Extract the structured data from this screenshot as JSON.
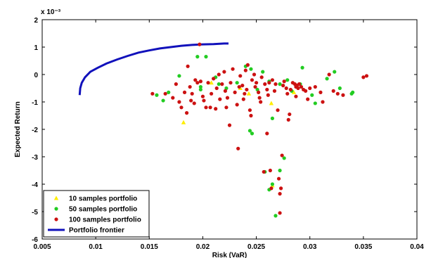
{
  "chart_data": {
    "type": "scatter",
    "xlabel": "Risk (VaR)",
    "ylabel": "Expected Return",
    "exponent_label": "x 10⁻³",
    "xlim": [
      0.005,
      0.04
    ],
    "ylim": [
      -6,
      2
    ],
    "x_ticks": [
      "0.005",
      "0.01",
      "0.015",
      "0.02",
      "0.025",
      "0.03",
      "0.035",
      "0.04"
    ],
    "y_ticks": [
      "2",
      "1",
      "0",
      "-1",
      "-2",
      "-3",
      "-4",
      "-5",
      "-6"
    ],
    "legend_position": "bottom-left",
    "grid": false,
    "series": [
      {
        "name": "10 samples portfolio",
        "marker": "triangle",
        "color": "#ffee00",
        "points": [
          [
            0.0182,
            -1.75
          ],
          [
            0.0264,
            -1.05
          ],
          [
            0.0265,
            -4.05
          ],
          [
            0.0208,
            -0.3
          ],
          [
            0.0235,
            -0.5
          ],
          [
            0.0285,
            -0.65
          ],
          [
            0.0243,
            -0.7
          ]
        ]
      },
      {
        "name": "50 samples portfolio",
        "marker": "circle",
        "color": "#22cc22",
        "points": [
          [
            0.0157,
            -0.75
          ],
          [
            0.0163,
            -0.95
          ],
          [
            0.0168,
            -0.65
          ],
          [
            0.0178,
            -0.05
          ],
          [
            0.0195,
            0.65
          ],
          [
            0.0203,
            0.65
          ],
          [
            0.0198,
            -0.45
          ],
          [
            0.0198,
            -0.55
          ],
          [
            0.0212,
            -0.1
          ],
          [
            0.0215,
            -0.35
          ],
          [
            0.0222,
            -0.5
          ],
          [
            0.0232,
            -0.3
          ],
          [
            0.024,
            0.3
          ],
          [
            0.0245,
            0.2
          ],
          [
            0.0244,
            -2.05
          ],
          [
            0.0246,
            -2.15
          ],
          [
            0.0251,
            -0.55
          ],
          [
            0.0256,
            0.1
          ],
          [
            0.0262,
            -0.25
          ],
          [
            0.0265,
            -1.6
          ],
          [
            0.0262,
            -4.2
          ],
          [
            0.0265,
            -4.0
          ],
          [
            0.0272,
            -0.35
          ],
          [
            0.0276,
            -3.05
          ],
          [
            0.0272,
            -3.5
          ],
          [
            0.0268,
            -5.15
          ],
          [
            0.0279,
            -0.2
          ],
          [
            0.0283,
            -0.6
          ],
          [
            0.0291,
            -0.35
          ],
          [
            0.0293,
            0.25
          ],
          [
            0.0302,
            -0.75
          ],
          [
            0.0305,
            -1.05
          ],
          [
            0.0316,
            -0.15
          ],
          [
            0.0323,
            0.1
          ],
          [
            0.0328,
            -0.5
          ],
          [
            0.034,
            -0.65
          ],
          [
            0.0339,
            -0.7
          ],
          [
            0.0258,
            -3.55
          ]
        ]
      },
      {
        "name": "100 samples portfolio",
        "marker": "circle",
        "color": "#cc1111",
        "points": [
          [
            0.0153,
            -0.7
          ],
          [
            0.0165,
            -0.7
          ],
          [
            0.0172,
            -0.85
          ],
          [
            0.0175,
            -0.35
          ],
          [
            0.0178,
            -1.0
          ],
          [
            0.018,
            -1.2
          ],
          [
            0.0183,
            -0.65
          ],
          [
            0.0185,
            -1.4
          ],
          [
            0.0186,
            0.3
          ],
          [
            0.0188,
            -0.45
          ],
          [
            0.019,
            -0.7
          ],
          [
            0.0192,
            -1.05
          ],
          [
            0.0193,
            -0.2
          ],
          [
            0.0195,
            -0.3
          ],
          [
            0.0197,
            1.1
          ],
          [
            0.0198,
            -0.25
          ],
          [
            0.02,
            -0.8
          ],
          [
            0.0201,
            -0.95
          ],
          [
            0.0203,
            -1.2
          ],
          [
            0.0205,
            -0.3
          ],
          [
            0.0207,
            -1.2
          ],
          [
            0.0208,
            -0.7
          ],
          [
            0.021,
            -0.15
          ],
          [
            0.0212,
            -1.25
          ],
          [
            0.0213,
            -0.5
          ],
          [
            0.0215,
            0.0
          ],
          [
            0.0216,
            -0.9
          ],
          [
            0.0218,
            -0.35
          ],
          [
            0.022,
            0.1
          ],
          [
            0.0221,
            -0.6
          ],
          [
            0.0222,
            -1.2
          ],
          [
            0.0223,
            -0.85
          ],
          [
            0.0225,
            -1.85
          ],
          [
            0.0226,
            -0.3
          ],
          [
            0.0228,
            0.2
          ],
          [
            0.023,
            -0.65
          ],
          [
            0.0232,
            -1.1
          ],
          [
            0.0233,
            -2.7
          ],
          [
            0.0235,
            -0.05
          ],
          [
            0.0237,
            -0.4
          ],
          [
            0.0238,
            -0.9
          ],
          [
            0.024,
            0.15
          ],
          [
            0.0241,
            -0.55
          ],
          [
            0.0242,
            0.35
          ],
          [
            0.0244,
            -1.3
          ],
          [
            0.0245,
            -1.5
          ],
          [
            0.0246,
            -0.2
          ],
          [
            0.0248,
            0.0
          ],
          [
            0.0249,
            -0.45
          ],
          [
            0.025,
            -0.3
          ],
          [
            0.0252,
            -0.65
          ],
          [
            0.0253,
            -0.85
          ],
          [
            0.0254,
            -1.0
          ],
          [
            0.0255,
            -0.1
          ],
          [
            0.0257,
            -3.55
          ],
          [
            0.0258,
            -0.35
          ],
          [
            0.026,
            -2.15
          ],
          [
            0.026,
            -0.55
          ],
          [
            0.0262,
            -0.3
          ],
          [
            0.0263,
            -3.5
          ],
          [
            0.0264,
            -4.15
          ],
          [
            0.0265,
            -0.2
          ],
          [
            0.0267,
            -0.6
          ],
          [
            0.0268,
            -0.35
          ],
          [
            0.027,
            -1.3
          ],
          [
            0.0271,
            -3.8
          ],
          [
            0.0272,
            -4.35
          ],
          [
            0.0272,
            -5.05
          ],
          [
            0.0273,
            -4.15
          ],
          [
            0.0274,
            -2.95
          ],
          [
            0.0275,
            -0.4
          ],
          [
            0.0276,
            -0.25
          ],
          [
            0.0278,
            -0.5
          ],
          [
            0.028,
            -1.65
          ],
          [
            0.0281,
            -1.45
          ],
          [
            0.0282,
            -0.55
          ],
          [
            0.0284,
            -0.3
          ],
          [
            0.0286,
            -0.35
          ],
          [
            0.0287,
            -0.45
          ],
          [
            0.0288,
            -0.4
          ],
          [
            0.0289,
            -0.5
          ],
          [
            0.029,
            -0.35
          ],
          [
            0.0292,
            -0.45
          ],
          [
            0.0294,
            -0.55
          ],
          [
            0.0296,
            -0.6
          ],
          [
            0.0298,
            -0.9
          ],
          [
            0.03,
            -0.5
          ],
          [
            0.0305,
            -0.45
          ],
          [
            0.031,
            -0.65
          ],
          [
            0.0312,
            -1.0
          ],
          [
            0.0318,
            0.0
          ],
          [
            0.0322,
            -0.6
          ],
          [
            0.0326,
            -0.7
          ],
          [
            0.0331,
            -0.75
          ],
          [
            0.035,
            -0.1
          ],
          [
            0.0353,
            -0.05
          ],
          [
            0.0189,
            -0.95
          ],
          [
            0.0234,
            -0.45
          ],
          [
            0.0239,
            -0.7
          ],
          [
            0.0261,
            -0.75
          ],
          [
            0.0279,
            -0.7
          ],
          [
            0.0287,
            -0.8
          ]
        ]
      },
      {
        "name": "Portfolio frontier",
        "marker": "line",
        "color": "#1111bb",
        "points": [
          [
            0.0085,
            -0.75
          ],
          [
            0.00855,
            -0.5
          ],
          [
            0.0087,
            -0.3
          ],
          [
            0.009,
            -0.1
          ],
          [
            0.0095,
            0.1
          ],
          [
            0.0102,
            0.25
          ],
          [
            0.011,
            0.4
          ],
          [
            0.012,
            0.55
          ],
          [
            0.013,
            0.68
          ],
          [
            0.014,
            0.8
          ],
          [
            0.015,
            0.88
          ],
          [
            0.016,
            0.95
          ],
          [
            0.017,
            1.0
          ],
          [
            0.018,
            1.05
          ],
          [
            0.019,
            1.08
          ],
          [
            0.02,
            1.1
          ],
          [
            0.021,
            1.11
          ],
          [
            0.022,
            1.13
          ],
          [
            0.0224,
            1.13
          ]
        ]
      }
    ]
  }
}
